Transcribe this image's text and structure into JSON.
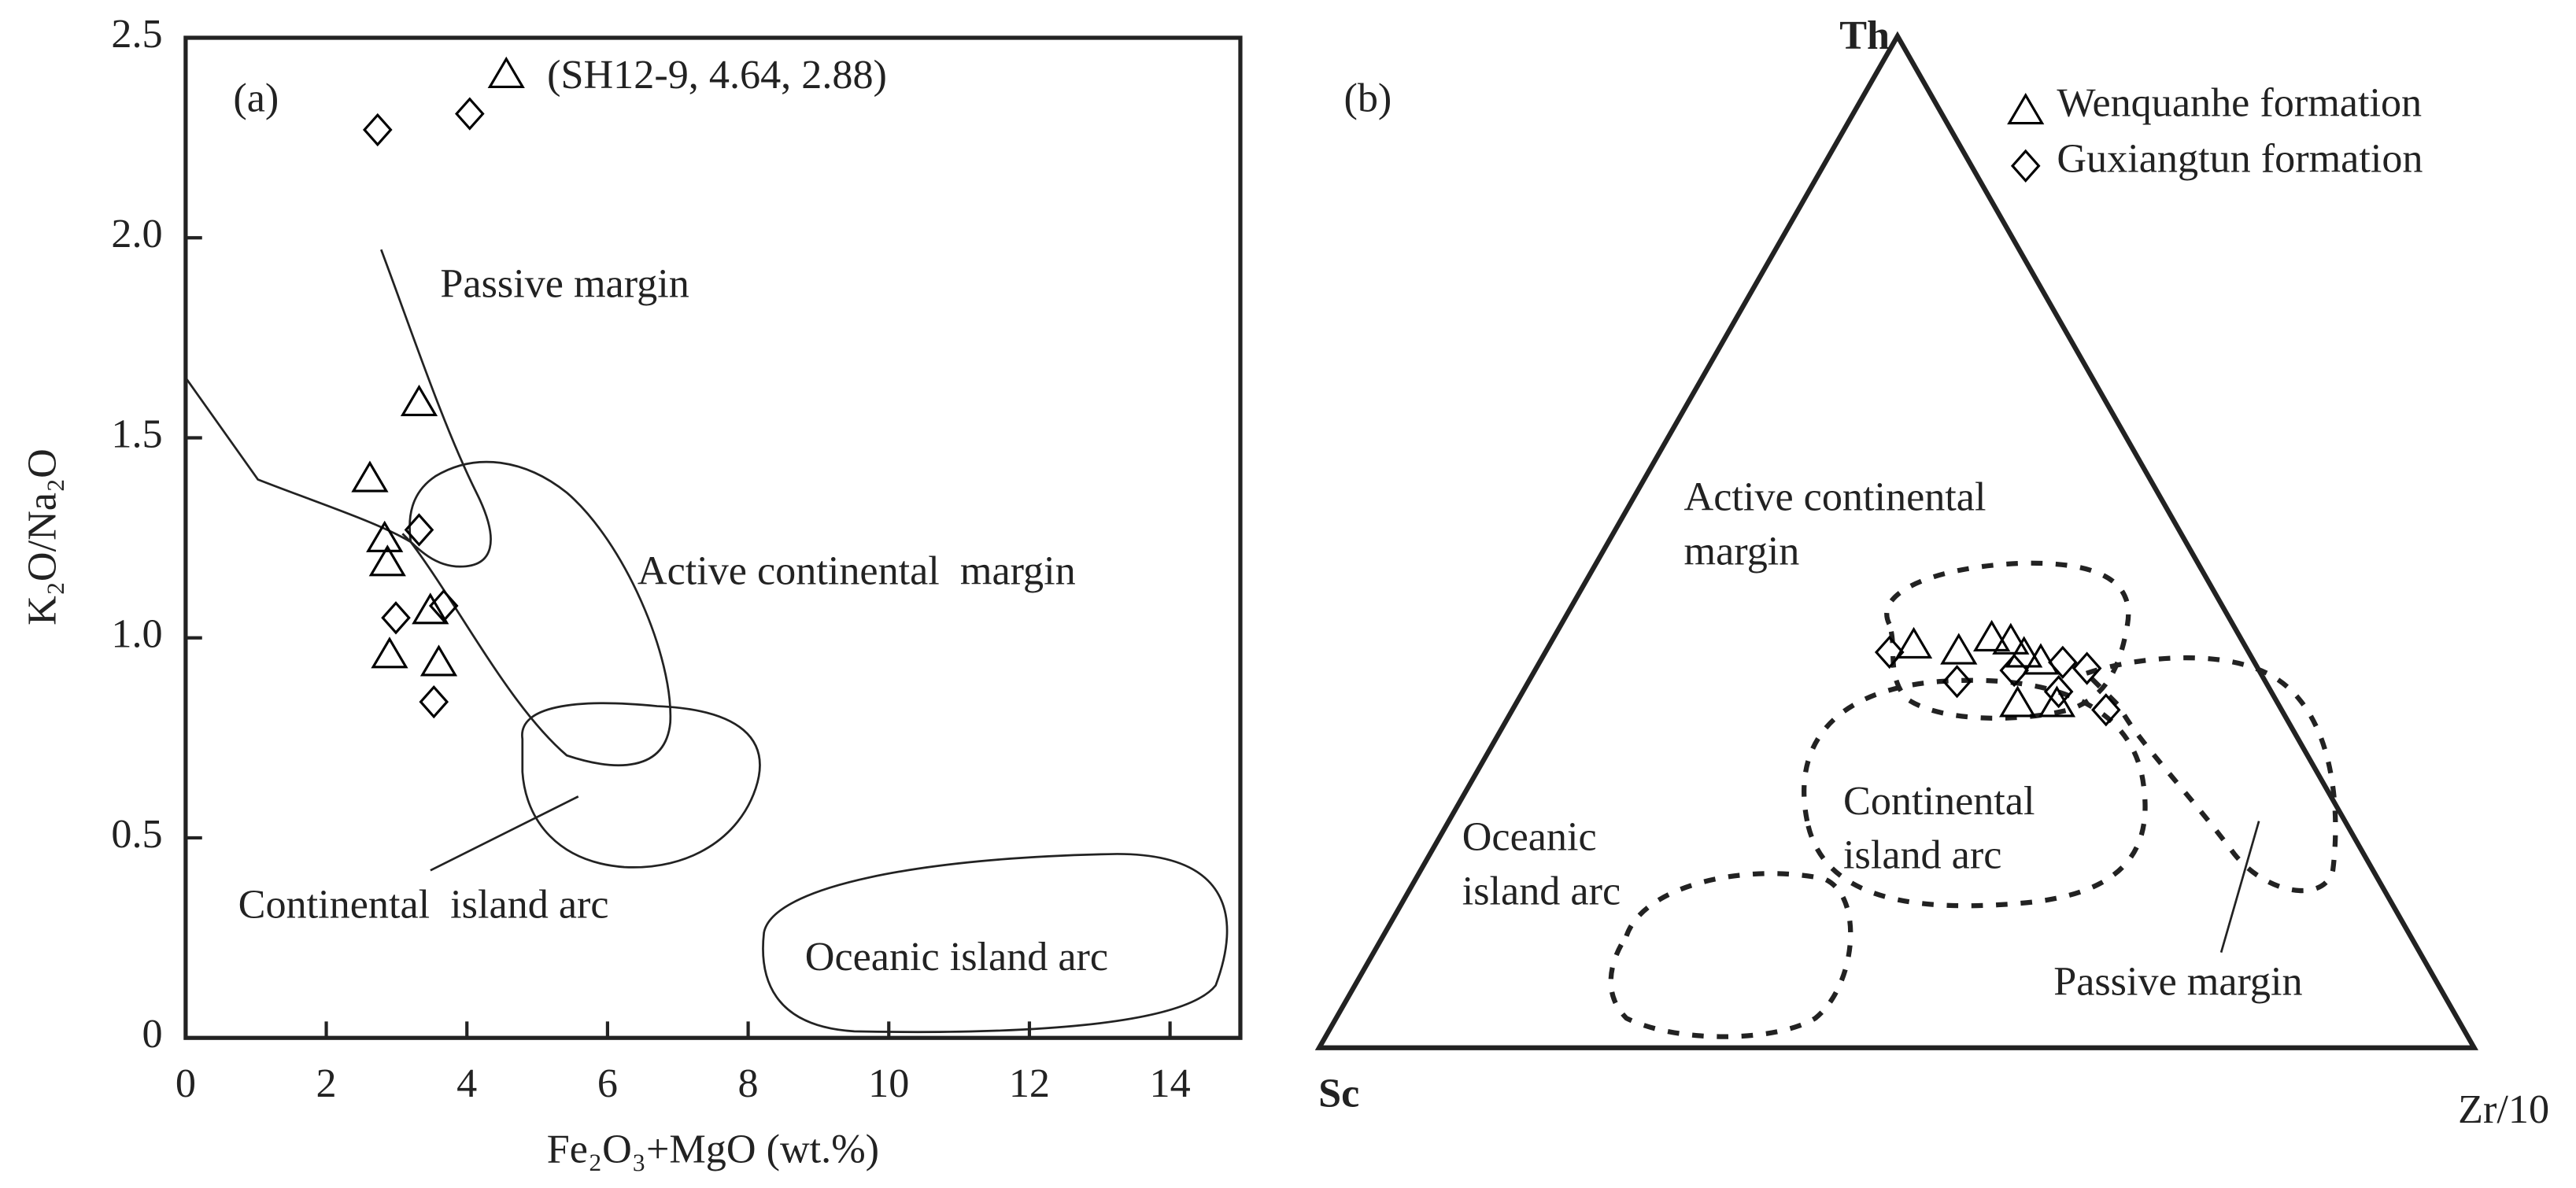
{
  "chart_data": [
    {
      "type": "scatter",
      "panel_label": "(a)",
      "x_label": "Fe₂O₃+MgO (wt.%)",
      "y_label": "K₂O/Na₂O",
      "xlim": [
        0,
        15
      ],
      "ylim": [
        0,
        2.5
      ],
      "xticks": [
        0,
        2,
        4,
        6,
        8,
        10,
        12,
        14
      ],
      "yticks": [
        0,
        0.5,
        {
          "value": 1,
          "label": "1.0"
        },
        1.5,
        {
          "value": 2,
          "label": "2.0"
        },
        2.5
      ],
      "series": [
        {
          "marker": "triangle",
          "color": "#000000",
          "x": [
            4.56,
            3.32,
            2.62,
            2.83,
            2.87,
            3.48,
            2.9,
            3.6
          ],
          "y": [
            2.41,
            1.59,
            1.4,
            1.25,
            1.19,
            1.07,
            0.96,
            0.94
          ]
        },
        {
          "marker": "diamond",
          "color": "#000000",
          "x": [
            2.73,
            4.04,
            3.32,
            2.99,
            3.67,
            3.53
          ],
          "y": [
            2.27,
            2.31,
            1.27,
            1.05,
            1.08,
            0.84
          ]
        }
      ],
      "annotations": [
        "(SH12-9, 4.64, 2.88)"
      ],
      "regions": [
        "Passive margin",
        "Active continental  margin",
        "Continental  island arc",
        "Oceanic island arc"
      ]
    },
    {
      "type": "ternary",
      "panel_label": "(b)",
      "axes": [
        "Th",
        "Sc",
        "Zr/10"
      ],
      "series": [
        {
          "name": "Wenquanhe formation",
          "marker": "triangle",
          "color": "#000000",
          "th": [
            39.9,
            39.3,
            40.6,
            40.3,
            39.0,
            38.3,
            34.1,
            34.1
          ],
          "sc": [
            28.6,
            25.0,
            21.5,
            20.0,
            19.5,
            18.4,
            22.5,
            19.1
          ],
          "zr": [
            31.5,
            35.7,
            37.9,
            39.7,
            41.5,
            43.3,
            43.4,
            46.8
          ]
        },
        {
          "name": "Guxiangtun formation",
          "marker": "diamond",
          "color": "#000000",
          "th": [
            39.1,
            36.2,
            37.3,
            38.1,
            37.5,
            35.2,
            33.4
          ],
          "sc": [
            31.1,
            26.7,
            21.2,
            16.6,
            14.8,
            18.4,
            15.2
          ],
          "zr": [
            29.8,
            37.1,
            41.5,
            45.3,
            47.7,
            46.4,
            51.4
          ]
        }
      ],
      "regions": [
        [
          "Active continental",
          "margin"
        ],
        [
          "Continental",
          "island arc"
        ],
        [
          "Oceanic",
          "island arc"
        ],
        [
          "Passive margin"
        ]
      ]
    }
  ]
}
